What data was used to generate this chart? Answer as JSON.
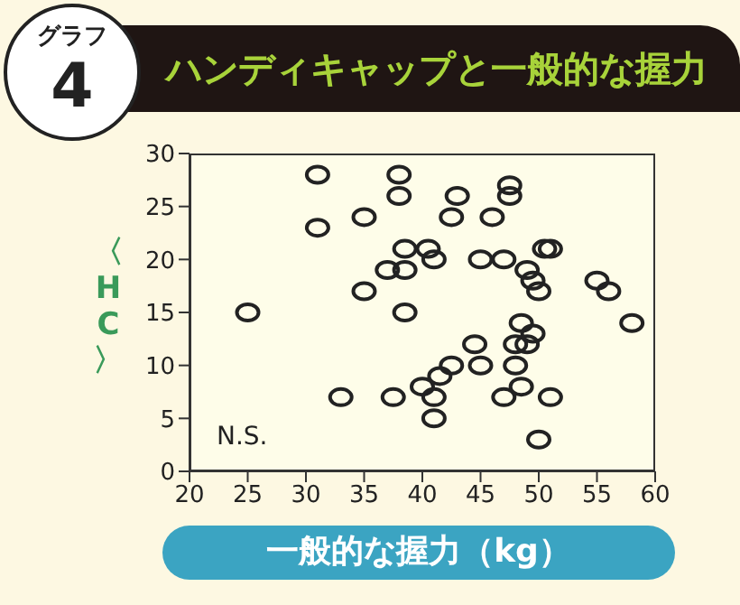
{
  "chart_data": {
    "type": "scatter",
    "title": "ハンディキャップと一般的な握力",
    "xlabel": "一般的な握力（kg）",
    "ylabel": "〈HC〉",
    "annotations": [
      "グラフ",
      "4",
      "N.S."
    ],
    "x": [
      25,
      31,
      31,
      35,
      35,
      33,
      37.5,
      38,
      38,
      38.5,
      37,
      38.5,
      38.5,
      40.5,
      41,
      43,
      47.5,
      47.5,
      42.5,
      46,
      45,
      47,
      50.5,
      51,
      49,
      49.5,
      50,
      55,
      56,
      58,
      48.5,
      49.5,
      48,
      49,
      44.5,
      42.5,
      45,
      48,
      41.5,
      40,
      41,
      41,
      47,
      48.5,
      51,
      50
    ],
    "values": [
      15,
      28,
      23,
      24,
      17,
      7,
      7,
      28,
      26,
      21,
      19,
      19,
      15,
      21,
      20,
      26,
      27,
      26,
      24,
      24,
      20,
      20,
      21,
      21,
      19,
      18,
      17,
      18,
      17,
      14,
      14,
      13,
      12,
      12,
      12,
      10,
      10,
      10,
      9,
      8,
      7,
      5,
      7,
      8,
      7,
      3
    ],
    "color": "#222222",
    "marker": "circle",
    "xlim": [
      20,
      60
    ],
    "ylim": [
      0,
      30
    ],
    "xticks": [
      20,
      25,
      30,
      35,
      40,
      45,
      50,
      55,
      60
    ],
    "yticks": [
      0,
      5,
      10,
      15,
      20,
      25,
      30
    ],
    "grid": false
  }
}
